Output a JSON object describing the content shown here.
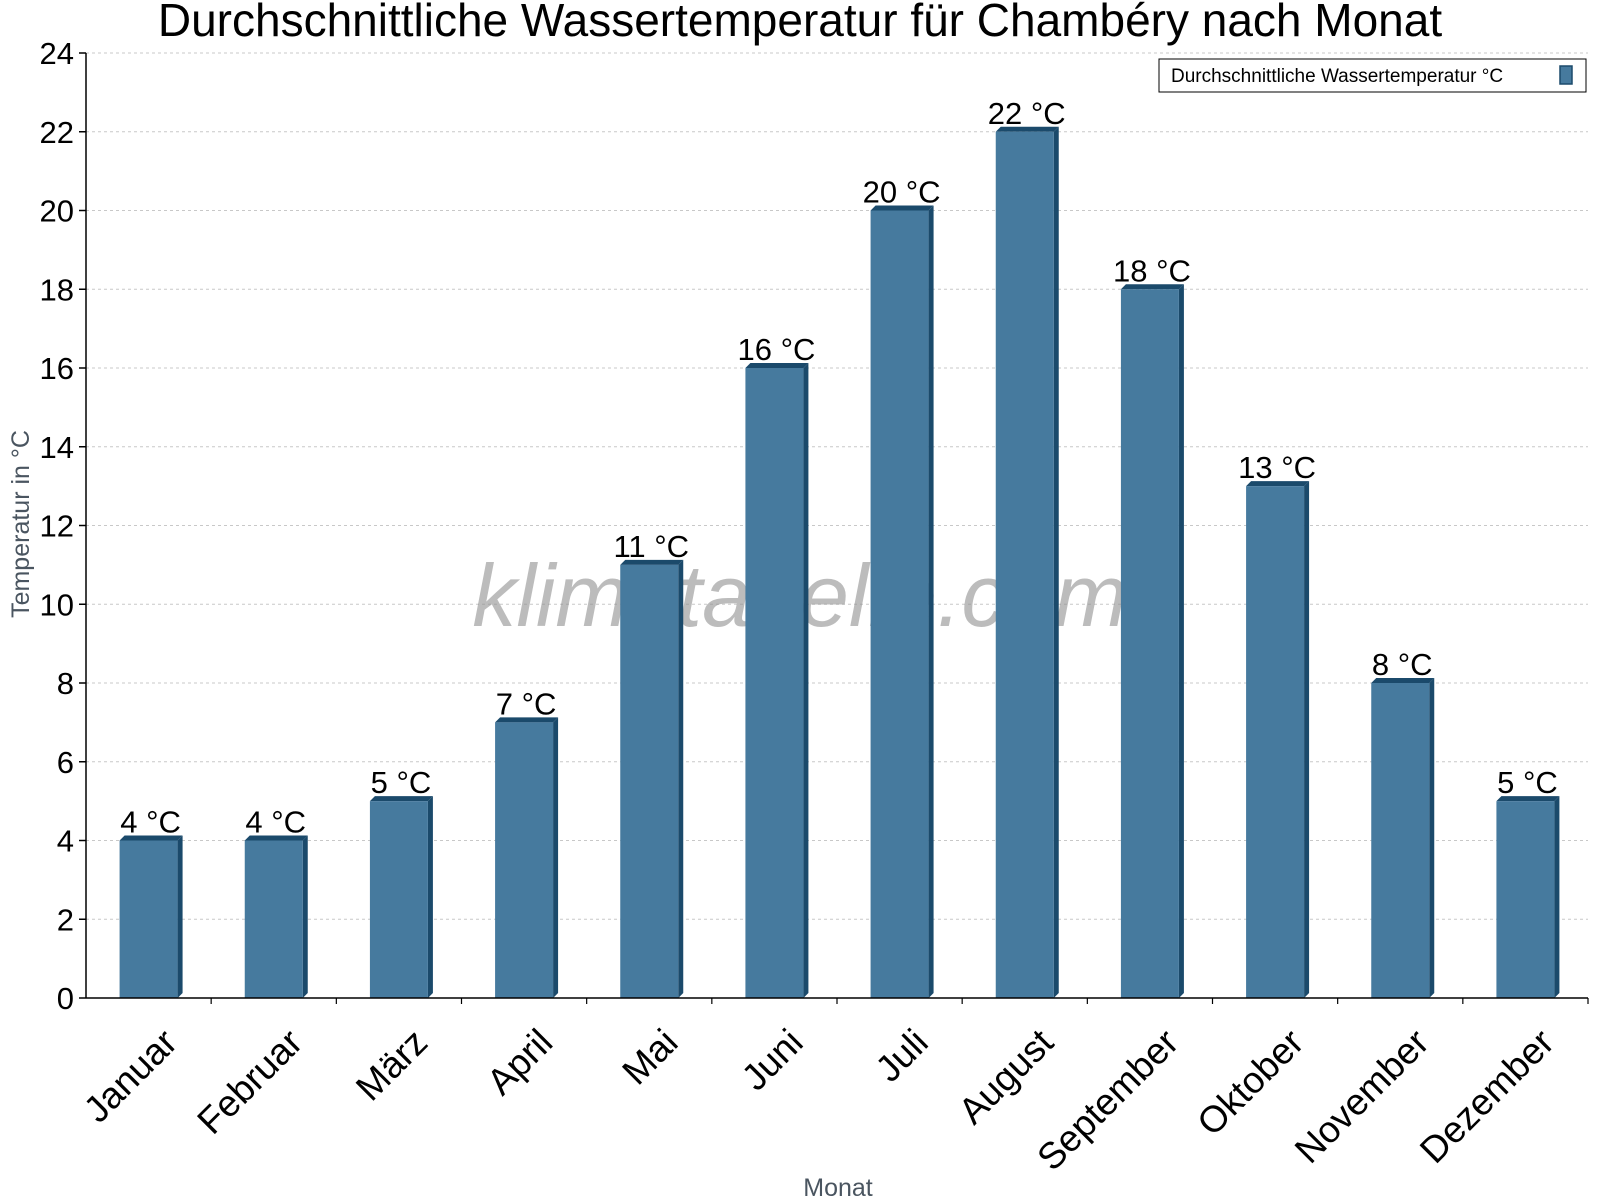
{
  "chart_data": {
    "type": "bar",
    "title": "Durchschnittliche Wassertemperatur für Chambéry nach Monat",
    "xlabel": "Monat",
    "ylabel": "Temperatur in °C",
    "categories": [
      "Januar",
      "Februar",
      "März",
      "April",
      "Mai",
      "Juni",
      "Juli",
      "August",
      "September",
      "Oktober",
      "November",
      "Dezember"
    ],
    "series": [
      {
        "name": "Durchschnittliche Wassertemperatur °C",
        "values": [
          4,
          4,
          5,
          7,
          11,
          16,
          20,
          22,
          18,
          13,
          8,
          5
        ],
        "labels": [
          "4 °C",
          "4 °C",
          "5 °C",
          "7 °C",
          "11 °C",
          "16 °C",
          "20 °C",
          "22 °C",
          "18 °C",
          "13 °C",
          "8 °C",
          "5 °C"
        ]
      }
    ],
    "ylim": [
      0,
      24
    ],
    "yticks": [
      0,
      2,
      4,
      6,
      8,
      10,
      12,
      14,
      16,
      18,
      20,
      22,
      24
    ],
    "grid": true,
    "legend_position": "top-right",
    "colors": {
      "bar": "#467a9e",
      "bar_edge": "#1b4a6b",
      "grid": "#c8c8c8"
    }
  },
  "watermark": "klimatabelle.com"
}
